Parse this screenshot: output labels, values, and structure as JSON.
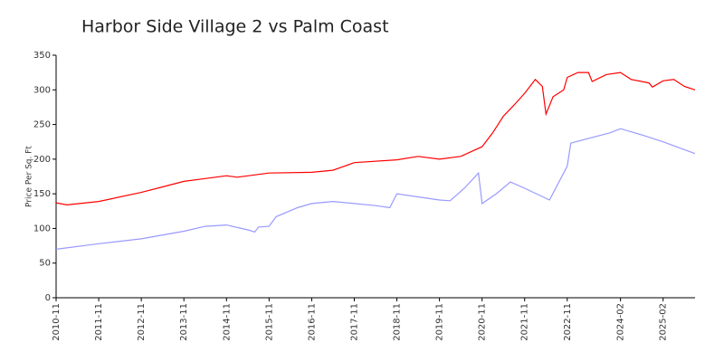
{
  "chart_data": {
    "type": "line",
    "title": "Harbor Side Village 2 vs Palm Coast",
    "y_label": "Price Per Sq. Ft",
    "xlim": [
      "2010-11",
      "2025-11"
    ],
    "xticks": [
      "2010-11",
      "2011-11",
      "2012-11",
      "2013-11",
      "2014-11",
      "2015-11",
      "2016-11",
      "2017-11",
      "2018-11",
      "2019-11",
      "2020-11",
      "2021-11",
      "2022-11",
      "2024-02",
      "2025-02"
    ],
    "ylim": [
      0,
      350
    ],
    "yticks": [
      0,
      50,
      100,
      150,
      200,
      250,
      300,
      350
    ],
    "grid": false,
    "series": [
      {
        "color": "#ff0000",
        "x": [
          "2010-11",
          "2011-02",
          "2011-11",
          "2012-11",
          "2013-05",
          "2013-11",
          "2014-05",
          "2014-11",
          "2015-02",
          "2015-11",
          "2016-11",
          "2017-05",
          "2017-11",
          "2018-11",
          "2019-05",
          "2019-11",
          "2020-05",
          "2020-11",
          "2021-02",
          "2021-05",
          "2021-08",
          "2021-11",
          "2022-02",
          "2022-04",
          "2022-05",
          "2022-07",
          "2022-10",
          "2022-11",
          "2023-02",
          "2023-05",
          "2023-06",
          "2023-10",
          "2024-02",
          "2024-05",
          "2024-10",
          "2024-11",
          "2025-02",
          "2025-05",
          "2025-08",
          "2025-11"
        ],
        "values": [
          137,
          134,
          139,
          152,
          160,
          168,
          172,
          176,
          174,
          180,
          181,
          184,
          195,
          199,
          204,
          200,
          204,
          218,
          238,
          262,
          278,
          295,
          315,
          305,
          265,
          290,
          300,
          318,
          325,
          325,
          312,
          322,
          325,
          315,
          310,
          304,
          313,
          315,
          305,
          300
        ]
      },
      {
        "color": "#9999ff",
        "x": [
          "2010-11",
          "2011-11",
          "2012-11",
          "2013-11",
          "2014-05",
          "2014-11",
          "2015-05",
          "2015-07",
          "2015-08",
          "2015-11",
          "2016-01",
          "2016-07",
          "2016-11",
          "2017-05",
          "2018-05",
          "2018-09",
          "2018-11",
          "2019-11",
          "2020-02",
          "2020-06",
          "2020-10",
          "2020-11",
          "2021-03",
          "2021-07",
          "2021-11",
          "2022-06",
          "2022-11",
          "2022-12",
          "2023-05",
          "2023-11",
          "2024-02",
          "2024-08",
          "2025-02",
          "2025-11"
        ],
        "values": [
          70,
          78,
          85,
          96,
          103,
          105,
          98,
          95,
          102,
          103,
          117,
          130,
          136,
          139,
          133,
          130,
          150,
          141,
          140,
          158,
          180,
          136,
          150,
          167,
          158,
          141,
          190,
          223,
          230,
          238,
          244,
          235,
          225,
          208
        ]
      }
    ]
  }
}
